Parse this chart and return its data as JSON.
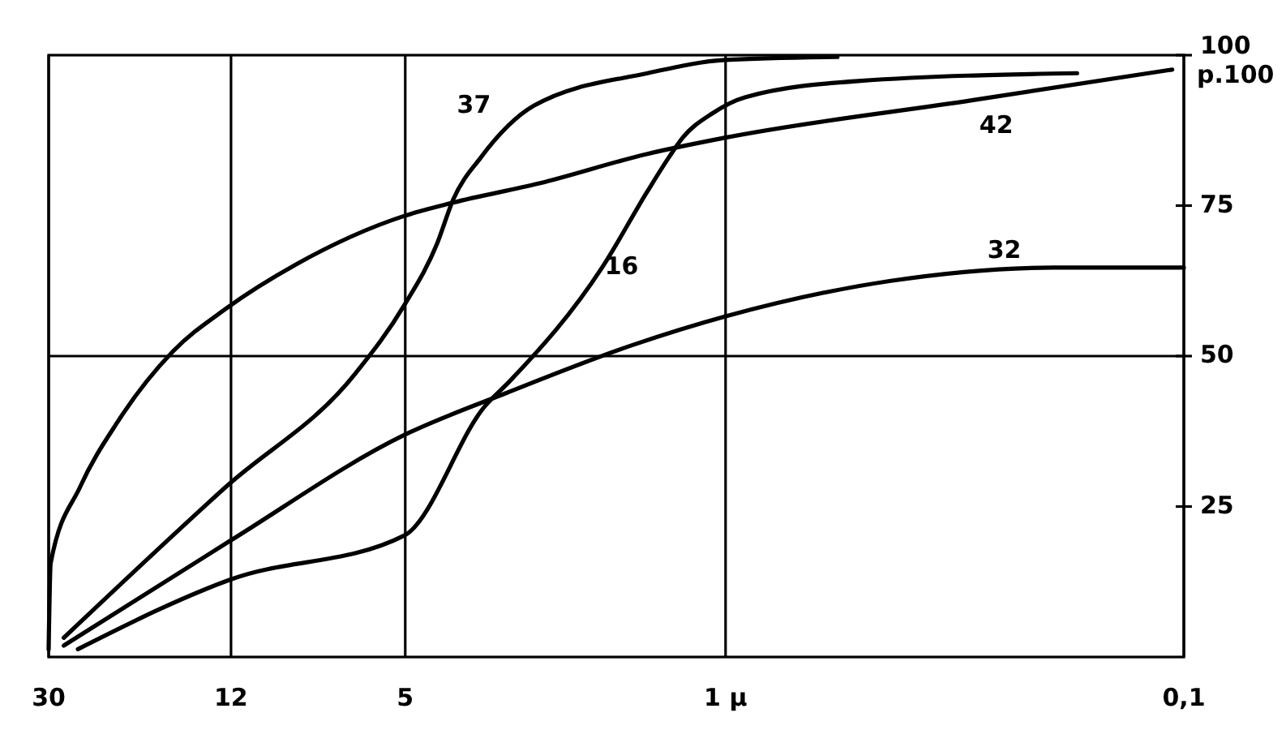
{
  "chart_data": {
    "type": "line",
    "log": "x",
    "xlim": [
      30,
      0.1
    ],
    "xticks": [
      30,
      12,
      5,
      {
        "value": 1,
        "label": "1 μ"
      },
      {
        "value": 0.1,
        "label": "0,1"
      }
    ],
    "ylim": [
      0,
      100
    ],
    "yticks": [
      25,
      50,
      75,
      100
    ],
    "ylabel": "p.100",
    "grid": "x",
    "ref_lines": [
      {
        "axis": "y",
        "value": 50
      }
    ],
    "marker": "none",
    "line_style": "solid",
    "series": [
      {
        "name": "42",
        "color": "#000000",
        "x": [
          30,
          29.7,
          25.6,
          21.2,
          16.1,
          12.3,
          8.67,
          5.02,
          3.93,
          2.55,
          1.48,
          1,
          0.29,
          0.106
        ],
        "values": [
          1.3,
          15.6,
          28.3,
          39.1,
          50.7,
          57.9,
          65.2,
          73.3,
          75.5,
          78.7,
          83.6,
          86.3,
          92.5,
          97.6
        ]
      },
      {
        "name": "37",
        "color": "#000000",
        "x": [
          27.8,
          12.3,
          6.41,
          5.02,
          4.26,
          3.93,
          3.42,
          2.62,
          1.48,
          1,
          0.57
        ],
        "values": [
          3.2,
          28.3,
          47.2,
          58.5,
          68.7,
          76,
          83,
          91.6,
          97,
          99.2,
          99.7
        ]
      },
      {
        "name": "32",
        "color": "#000000",
        "x": [
          27.8,
          12,
          5.02,
          3.0,
          1.6,
          1,
          0.436,
          0.193,
          0.1
        ],
        "values": [
          1.9,
          19.4,
          36.9,
          43.9,
          51.8,
          56.6,
          62.5,
          64.7,
          64.7
        ]
      },
      {
        "name": "16",
        "color": "#000000",
        "x": [
          25.9,
          12,
          5.02,
          3.34,
          2.96,
          1.86,
          1.48,
          1.33,
          1.24,
          1.07,
          0.907,
          0.513,
          0.171
        ],
        "values": [
          1.3,
          12.9,
          20.2,
          41.8,
          45.8,
          64.7,
          77.4,
          83,
          86.3,
          90.3,
          93,
          95.7,
          97
        ]
      }
    ]
  }
}
